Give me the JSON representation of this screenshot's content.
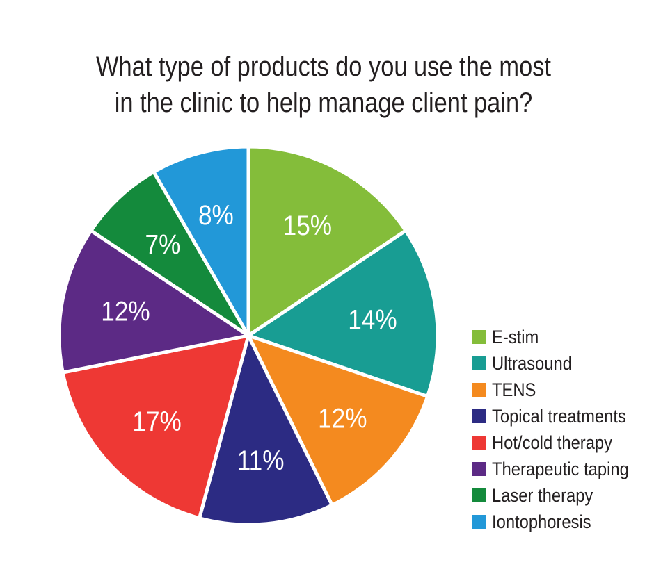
{
  "chart_data": {
    "type": "pie",
    "title": "What type of products do you use the most in the clinic to help manage client pain?",
    "title_lines": [
      "What type of products do you use the most",
      "in the clinic to help manage client pain?"
    ],
    "legend_position": "right",
    "slices": [
      {
        "label": "E-stim",
        "value": 15,
        "display": "15%",
        "color": "#84bd3a"
      },
      {
        "label": "Ultrasound",
        "value": 14,
        "display": "14%",
        "color": "#189d93"
      },
      {
        "label": "TENS",
        "value": 12,
        "display": "12%",
        "color": "#f48a1f"
      },
      {
        "label": "Topical treatments",
        "value": 11,
        "display": "11%",
        "color": "#2c2b83"
      },
      {
        "label": "Hot/cold therapy",
        "value": 17,
        "display": "17%",
        "color": "#ee3834"
      },
      {
        "label": "Therapeutic taping",
        "value": 12,
        "display": "12%",
        "color": "#5c2a85"
      },
      {
        "label": "Laser therapy",
        "value": 7,
        "display": "7%",
        "color": "#148a3c"
      },
      {
        "label": "Iontophoresis",
        "value": 8,
        "display": "8%",
        "color": "#2298d8"
      }
    ]
  }
}
